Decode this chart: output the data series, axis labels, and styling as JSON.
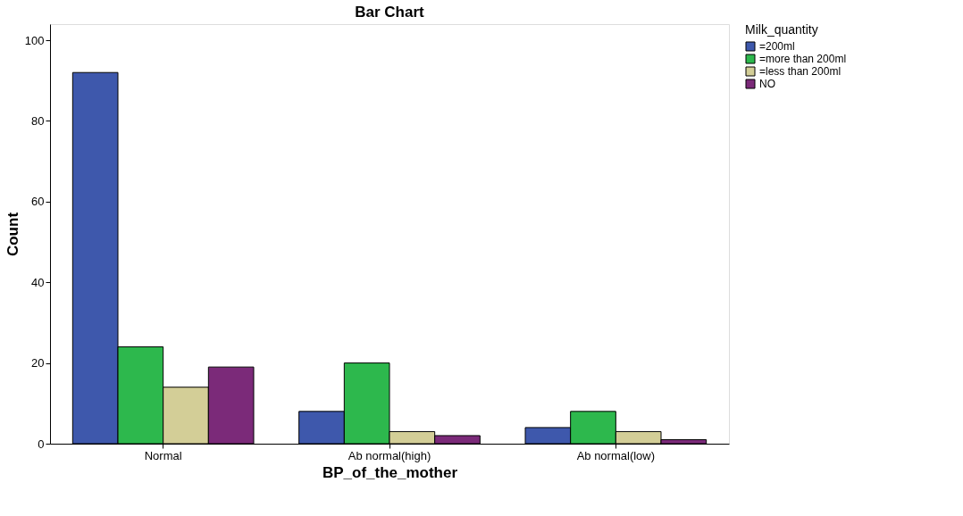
{
  "chart_data": {
    "type": "bar",
    "title": "Bar Chart",
    "xlabel": "BP_of_the_mother",
    "ylabel": "Count",
    "legend_title": "Milk_quantity",
    "categories": [
      "Normal",
      "Ab normal(high)",
      "Ab normal(low)"
    ],
    "series": [
      {
        "name": "=200ml",
        "color": "#3e58ac",
        "values": [
          92,
          8,
          4
        ]
      },
      {
        "name": "=more than 200ml",
        "color": "#2db84d",
        "values": [
          24,
          20,
          8
        ]
      },
      {
        "name": "=less than 200ml",
        "color": "#d3ce97",
        "values": [
          14,
          3,
          3
        ]
      },
      {
        "name": "NO",
        "color": "#7b2a79",
        "values": [
          19,
          2,
          1
        ]
      }
    ],
    "ylim": [
      0,
      104
    ],
    "yticks": [
      0,
      20,
      40,
      60,
      80,
      100
    ],
    "grid": false,
    "legend": "top right"
  }
}
